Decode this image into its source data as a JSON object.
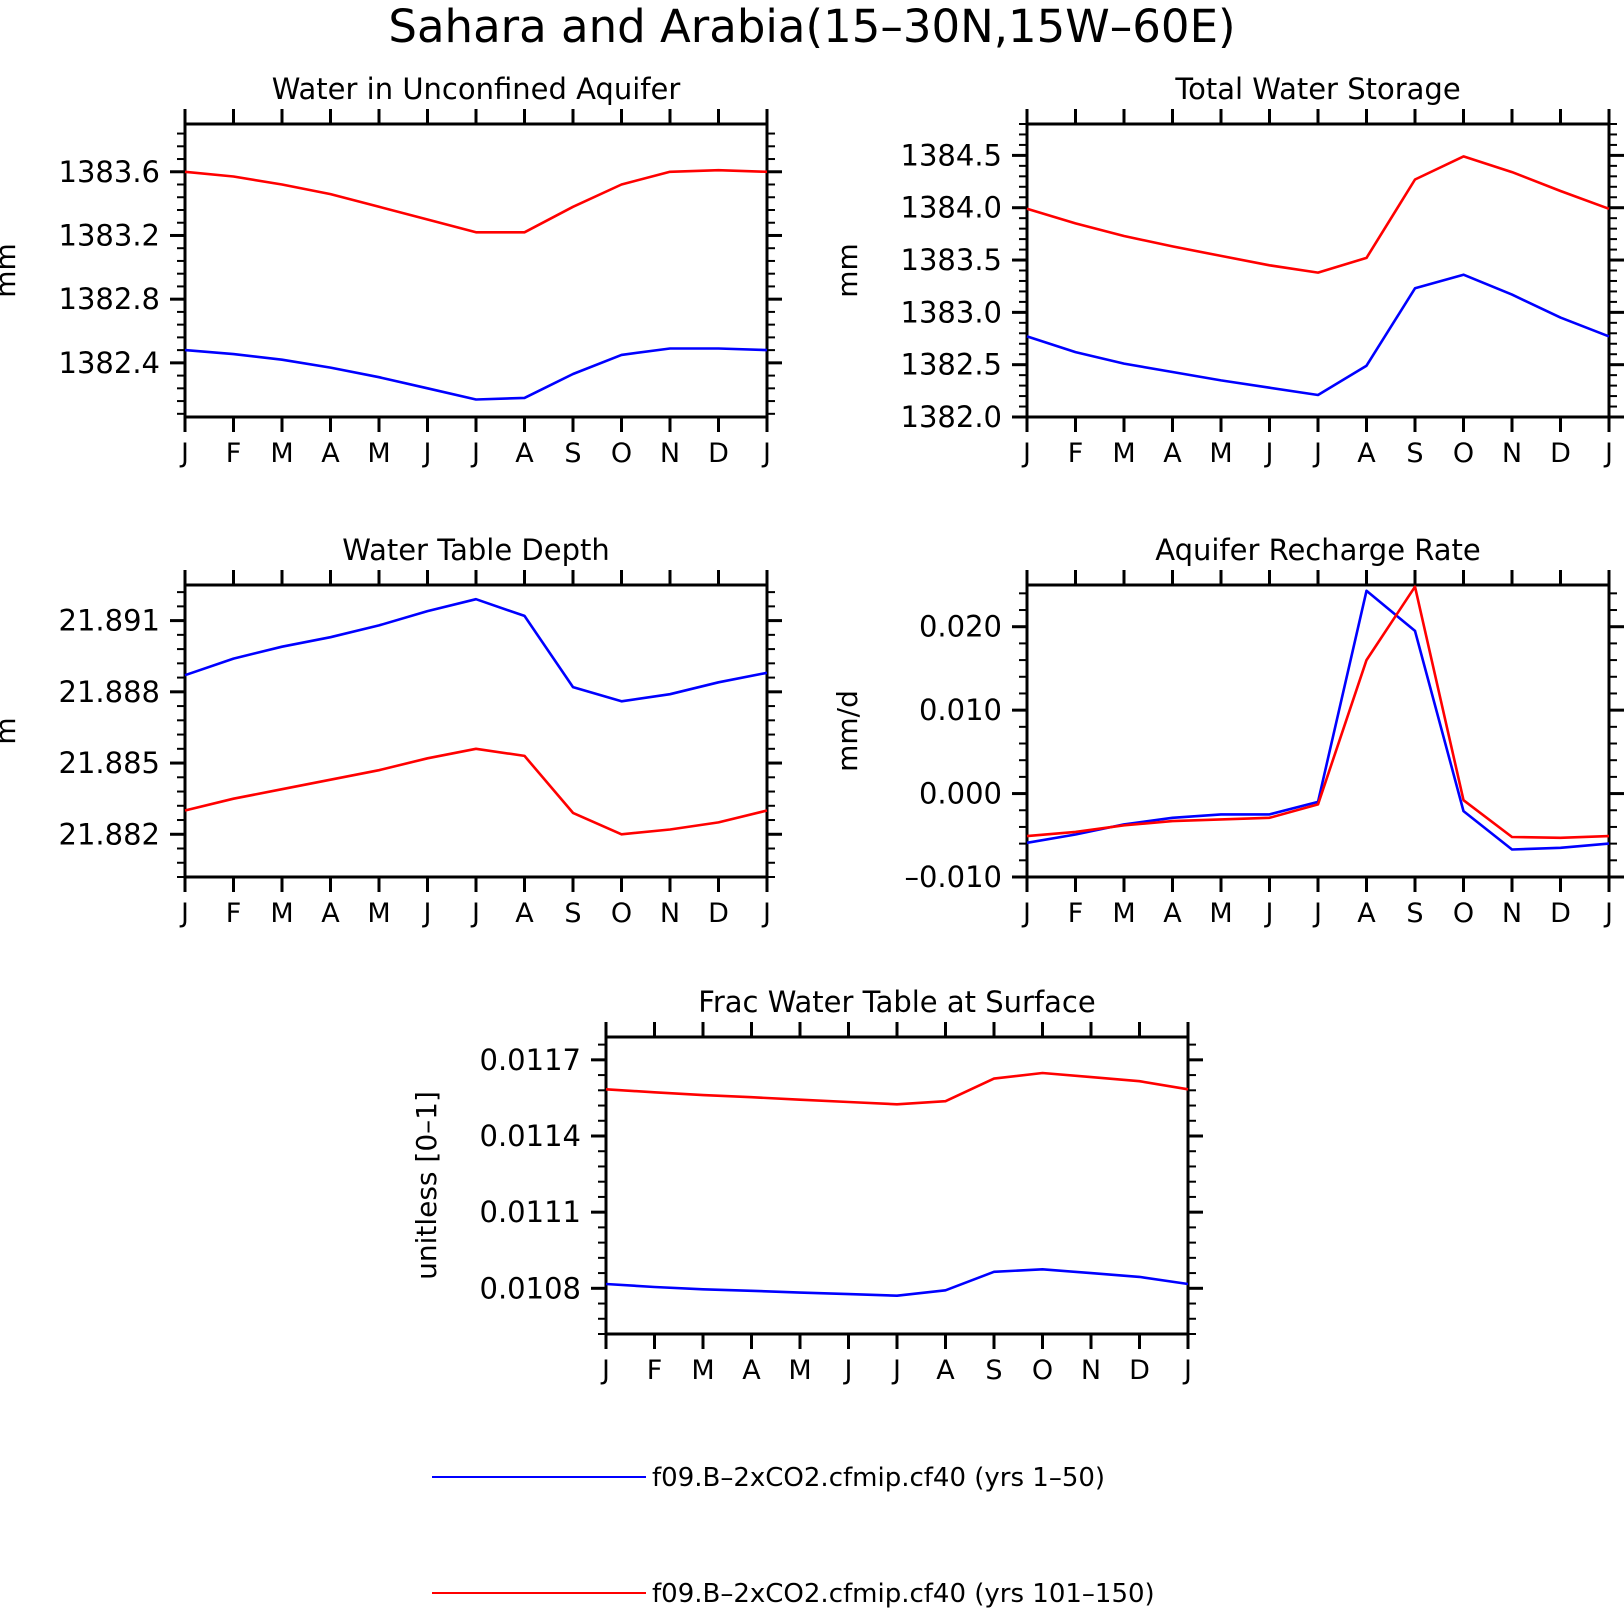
{
  "page_title": "Sahara and Arabia(15–30N,15W–60E)",
  "months": [
    "J",
    "F",
    "M",
    "A",
    "M",
    "J",
    "J",
    "A",
    "S",
    "O",
    "N",
    "D",
    "J"
  ],
  "legend": [
    {
      "label": "f09.B–2xCO2.cfmip.cf40 (yrs 1–50)",
      "color": "#0000ff"
    },
    {
      "label": "f09.B–2xCO2.cfmip.cf40 (yrs 101–150)",
      "color": "#ff0000"
    }
  ],
  "chart_data": [
    {
      "type": "line",
      "title": "Water in Unconfined Aquifer",
      "ylabel": "mm",
      "ylim": [
        1382.06,
        1383.9
      ],
      "yticks": [
        1382.4,
        1382.8,
        1383.2,
        1383.6
      ],
      "ytick_labels": [
        "1382.4",
        "1382.8",
        "1383.2",
        "1383.6"
      ],
      "x": [
        "J",
        "F",
        "M",
        "A",
        "M",
        "J",
        "J",
        "A",
        "S",
        "O",
        "N",
        "D",
        "J"
      ],
      "series": [
        {
          "name": "f09.B–2xCO2.cfmip.cf40 (yrs 1–50)",
          "color": "#0000ff",
          "values": [
            1382.48,
            1382.455,
            1382.42,
            1382.37,
            1382.31,
            1382.24,
            1382.17,
            1382.18,
            1382.33,
            1382.45,
            1382.49,
            1382.49,
            1382.48
          ]
        },
        {
          "name": "f09.B–2xCO2.cfmip.cf40 (yrs 101–150)",
          "color": "#ff0000",
          "values": [
            1383.6,
            1383.57,
            1383.52,
            1383.46,
            1383.38,
            1383.3,
            1383.22,
            1383.22,
            1383.38,
            1383.52,
            1383.6,
            1383.61,
            1383.6
          ]
        }
      ]
    },
    {
      "type": "line",
      "title": "Total Water Storage",
      "ylabel": "mm",
      "ylim": [
        1382.0,
        1384.8
      ],
      "yticks": [
        1382.0,
        1382.5,
        1383.0,
        1383.5,
        1384.0,
        1384.5
      ],
      "ytick_labels": [
        "1382.0",
        "1382.5",
        "1383.0",
        "1383.5",
        "1384.0",
        "1384.5"
      ],
      "x": [
        "J",
        "F",
        "M",
        "A",
        "M",
        "J",
        "J",
        "A",
        "S",
        "O",
        "N",
        "D",
        "J"
      ],
      "series": [
        {
          "name": "f09.B–2xCO2.cfmip.cf40 (yrs 1–50)",
          "color": "#0000ff",
          "values": [
            1382.77,
            1382.62,
            1382.51,
            1382.43,
            1382.35,
            1382.28,
            1382.21,
            1382.49,
            1383.23,
            1383.36,
            1383.17,
            1382.95,
            1382.77
          ]
        },
        {
          "name": "f09.B–2xCO2.cfmip.cf40 (yrs 101–150)",
          "color": "#ff0000",
          "values": [
            1383.99,
            1383.85,
            1383.73,
            1383.63,
            1383.54,
            1383.45,
            1383.38,
            1383.52,
            1384.27,
            1384.49,
            1384.34,
            1384.16,
            1383.99
          ]
        }
      ]
    },
    {
      "type": "line",
      "title": "Water Table Depth",
      "ylabel": "m",
      "ylim": [
        21.8802,
        21.8925
      ],
      "yticks": [
        21.882,
        21.885,
        21.888,
        21.891
      ],
      "ytick_labels": [
        "21.882",
        "21.885",
        "21.888",
        "21.891"
      ],
      "x": [
        "J",
        "F",
        "M",
        "A",
        "M",
        "J",
        "J",
        "A",
        "S",
        "O",
        "N",
        "D",
        "J"
      ],
      "series": [
        {
          "name": "f09.B–2xCO2.cfmip.cf40 (yrs 1–50)",
          "color": "#0000ff",
          "values": [
            21.8887,
            21.8894,
            21.8899,
            21.8903,
            21.8908,
            21.8914,
            21.8919,
            21.8912,
            21.8882,
            21.8876,
            21.8879,
            21.8884,
            21.8888
          ]
        },
        {
          "name": "f09.B–2xCO2.cfmip.cf40 (yrs 101–150)",
          "color": "#ff0000",
          "values": [
            21.883,
            21.8835,
            21.8839,
            21.8843,
            21.8847,
            21.8852,
            21.8856,
            21.8853,
            21.8829,
            21.882,
            21.8822,
            21.8825,
            21.883
          ]
        }
      ]
    },
    {
      "type": "line",
      "title": "Aquifer Recharge Rate",
      "ylabel": "mm/d",
      "ylim": [
        -0.01,
        0.025
      ],
      "yticks": [
        -0.01,
        0.0,
        0.01,
        0.02
      ],
      "ytick_labels": [
        "–0.010",
        "0.000",
        "0.010",
        "0.020"
      ],
      "x": [
        "J",
        "F",
        "M",
        "A",
        "M",
        "J",
        "J",
        "A",
        "S",
        "O",
        "N",
        "D",
        "J"
      ],
      "series": [
        {
          "name": "f09.B–2xCO2.cfmip.cf40 (yrs 1–50)",
          "color": "#0000ff",
          "values": [
            -0.0059,
            -0.0049,
            -0.0037,
            -0.0029,
            -0.0025,
            -0.0025,
            -0.001,
            0.0243,
            0.0195,
            -0.0021,
            -0.0067,
            -0.0065,
            -0.006
          ]
        },
        {
          "name": "f09.B–2xCO2.cfmip.cf40 (yrs 101–150)",
          "color": "#ff0000",
          "values": [
            -0.0051,
            -0.0046,
            -0.0038,
            -0.0033,
            -0.0031,
            -0.0029,
            -0.0013,
            0.016,
            0.0248,
            -0.0008,
            -0.0052,
            -0.0053,
            -0.0051
          ]
        }
      ]
    },
    {
      "type": "line",
      "title": "Frac Water Table at Surface",
      "ylabel": "unitless [0–1]",
      "ylim": [
        0.01062,
        0.01179
      ],
      "yticks": [
        0.0108,
        0.0111,
        0.0114,
        0.0117
      ],
      "ytick_labels": [
        "0.0108",
        "0.0111",
        "0.0114",
        "0.0117"
      ],
      "x": [
        "J",
        "F",
        "M",
        "A",
        "M",
        "J",
        "J",
        "A",
        "S",
        "O",
        "N",
        "D",
        "J"
      ],
      "series": [
        {
          "name": "f09.B–2xCO2.cfmip.cf40 (yrs 1–50)",
          "color": "#0000ff",
          "values": [
            0.010817,
            0.010805,
            0.010796,
            0.01079,
            0.010783,
            0.010777,
            0.010771,
            0.010792,
            0.010865,
            0.010875,
            0.01086,
            0.010845,
            0.010817
          ]
        },
        {
          "name": "f09.B–2xCO2.cfmip.cf40 (yrs 101–150)",
          "color": "#ff0000",
          "values": [
            0.011584,
            0.011572,
            0.011561,
            0.011553,
            0.011543,
            0.011534,
            0.011525,
            0.011537,
            0.011626,
            0.011648,
            0.011632,
            0.011616,
            0.011584
          ]
        }
      ]
    }
  ]
}
